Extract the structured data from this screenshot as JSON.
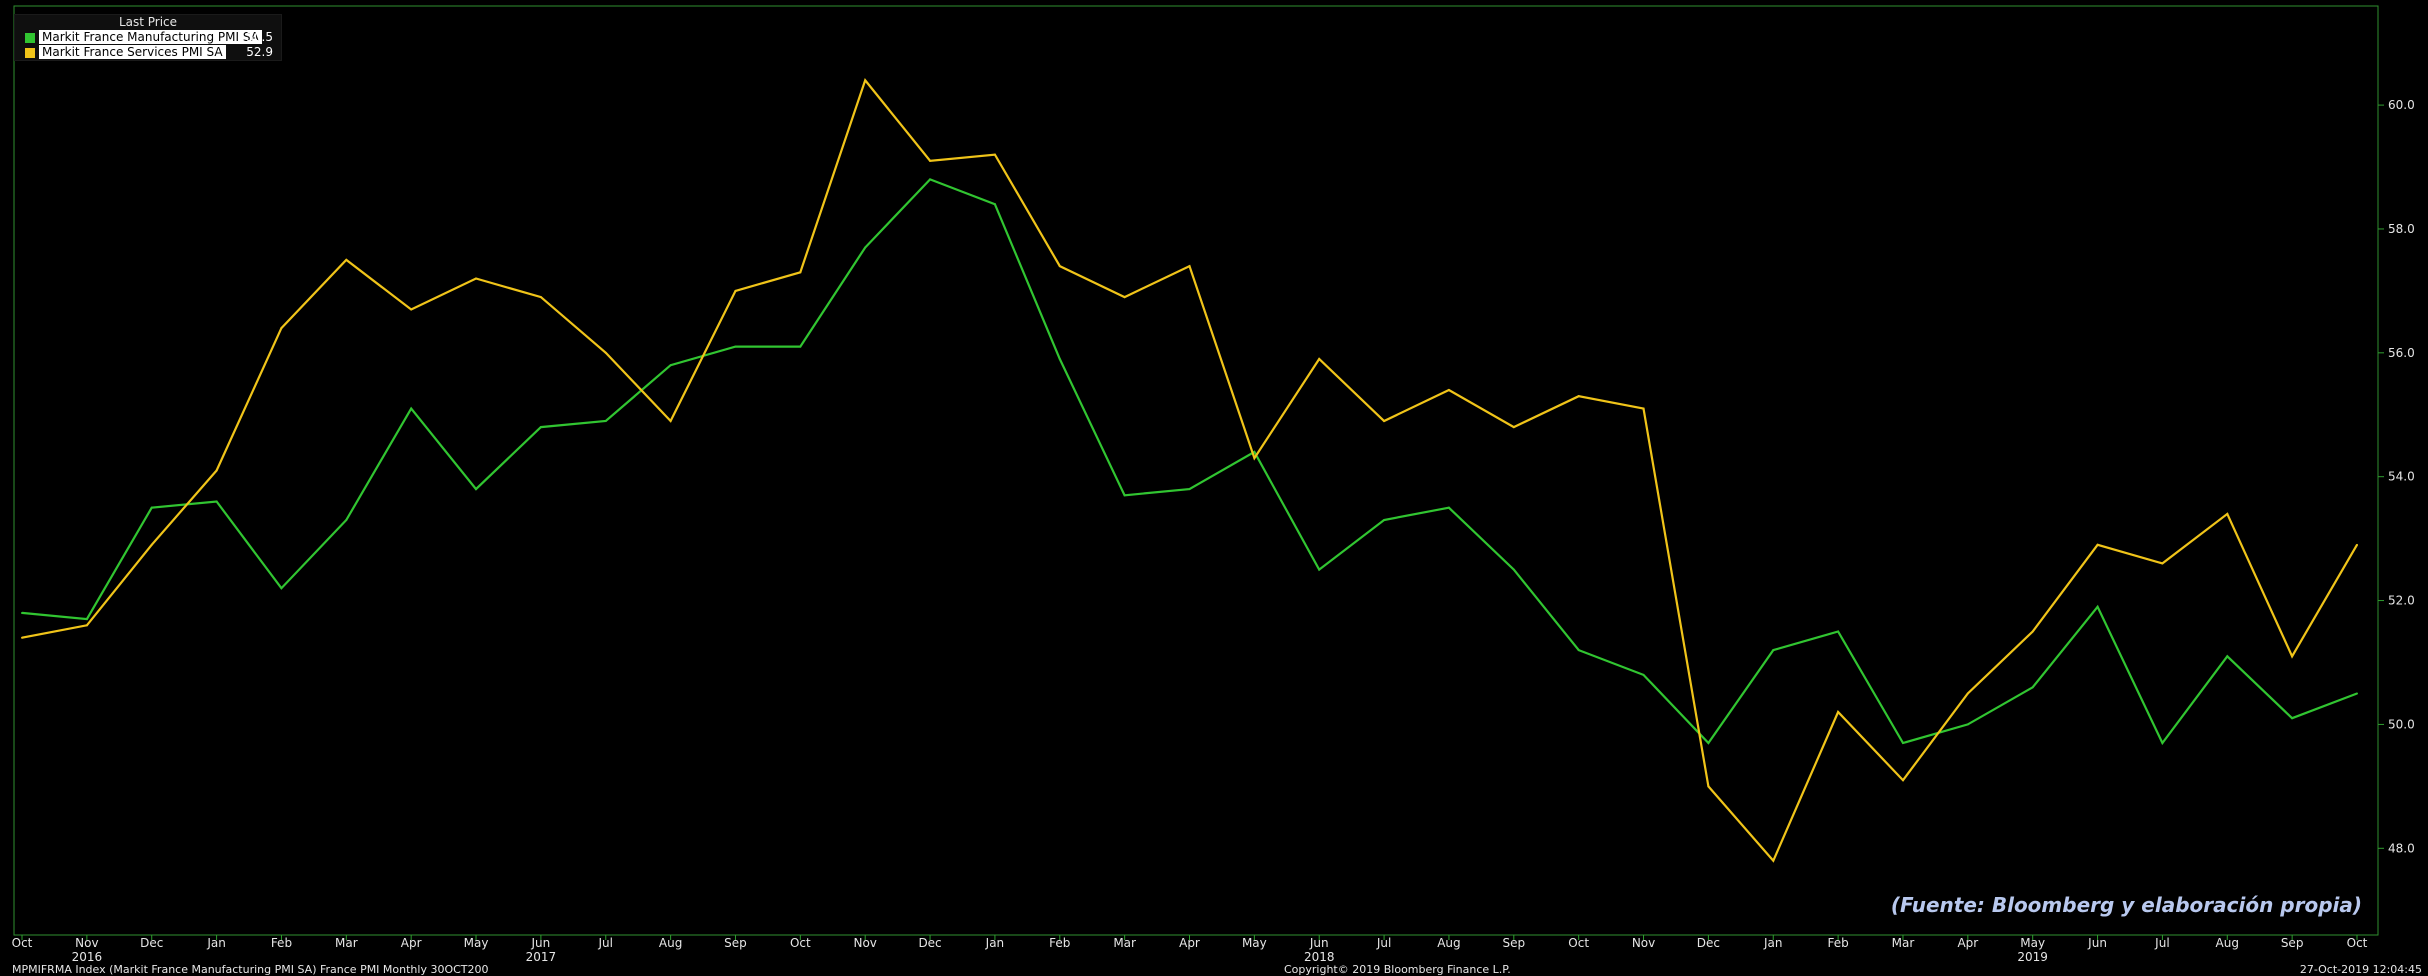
{
  "legend": {
    "title": "Last Price",
    "items": [
      {
        "name": "Markit France Manufacturing PMI SA",
        "value": "50.5",
        "color": "#31c531"
      },
      {
        "name": "Markit France Services PMI SA",
        "value": "52.9",
        "color": "#f0c419"
      }
    ]
  },
  "source_note": "(Fuente: Bloomberg y elaboración propia)",
  "footer": {
    "left": "MPMIFRMA Index (Markit France Manufacturing PMI SA) France PMI  Monthly 30OCT200",
    "center": "Copyright© 2019 Bloomberg Finance L.P.",
    "right": "27-Oct-2019 12:04:45"
  },
  "chart_data": {
    "type": "line",
    "x": [
      "Oct",
      "Nov",
      "Dec",
      "Jan",
      "Feb",
      "Mar",
      "Apr",
      "May",
      "Jun",
      "Jul",
      "Aug",
      "Sep",
      "Oct",
      "Nov",
      "Dec",
      "Jan",
      "Feb",
      "Mar",
      "Apr",
      "May",
      "Jun",
      "Jul",
      "Aug",
      "Sep",
      "Oct",
      "Nov",
      "Dec",
      "Jan",
      "Feb",
      "Mar",
      "Apr",
      "May",
      "Jun",
      "Jul",
      "Aug",
      "Sep",
      "Oct"
    ],
    "year_labels": [
      {
        "index": 1,
        "label": "2016"
      },
      {
        "index": 8,
        "label": "2017"
      },
      {
        "index": 20,
        "label": "2018"
      },
      {
        "index": 31,
        "label": "2019"
      }
    ],
    "series": [
      {
        "name": "Markit France Manufacturing PMI SA",
        "color": "#31c531",
        "values": [
          51.8,
          51.7,
          53.5,
          53.6,
          52.2,
          53.3,
          55.1,
          53.8,
          54.8,
          54.9,
          55.8,
          56.1,
          56.1,
          57.7,
          58.8,
          58.4,
          55.9,
          53.7,
          53.8,
          54.4,
          52.5,
          53.3,
          53.5,
          52.5,
          51.2,
          50.8,
          49.7,
          51.2,
          51.5,
          49.7,
          50.0,
          50.6,
          51.9,
          49.7,
          51.1,
          50.1,
          50.5
        ]
      },
      {
        "name": "Markit France Services PMI SA",
        "color": "#f0c419",
        "values": [
          51.4,
          51.6,
          52.9,
          54.1,
          56.4,
          57.5,
          56.7,
          57.2,
          56.9,
          56.0,
          54.9,
          57.0,
          57.3,
          60.4,
          59.1,
          59.2,
          57.4,
          56.9,
          57.4,
          54.3,
          55.9,
          54.9,
          55.4,
          54.8,
          55.3,
          55.1,
          49.0,
          47.8,
          50.2,
          49.1,
          50.5,
          51.5,
          52.9,
          52.6,
          53.4,
          51.1,
          52.9
        ]
      }
    ],
    "y_ticks": [
      "48.0",
      "50.0",
      "52.0",
      "54.0",
      "56.0",
      "58.0",
      "60.0"
    ],
    "ylim": [
      46.6,
      61.6
    ],
    "grid": false,
    "legend_position": "top-left",
    "axis_color": "#2f9e2f"
  }
}
